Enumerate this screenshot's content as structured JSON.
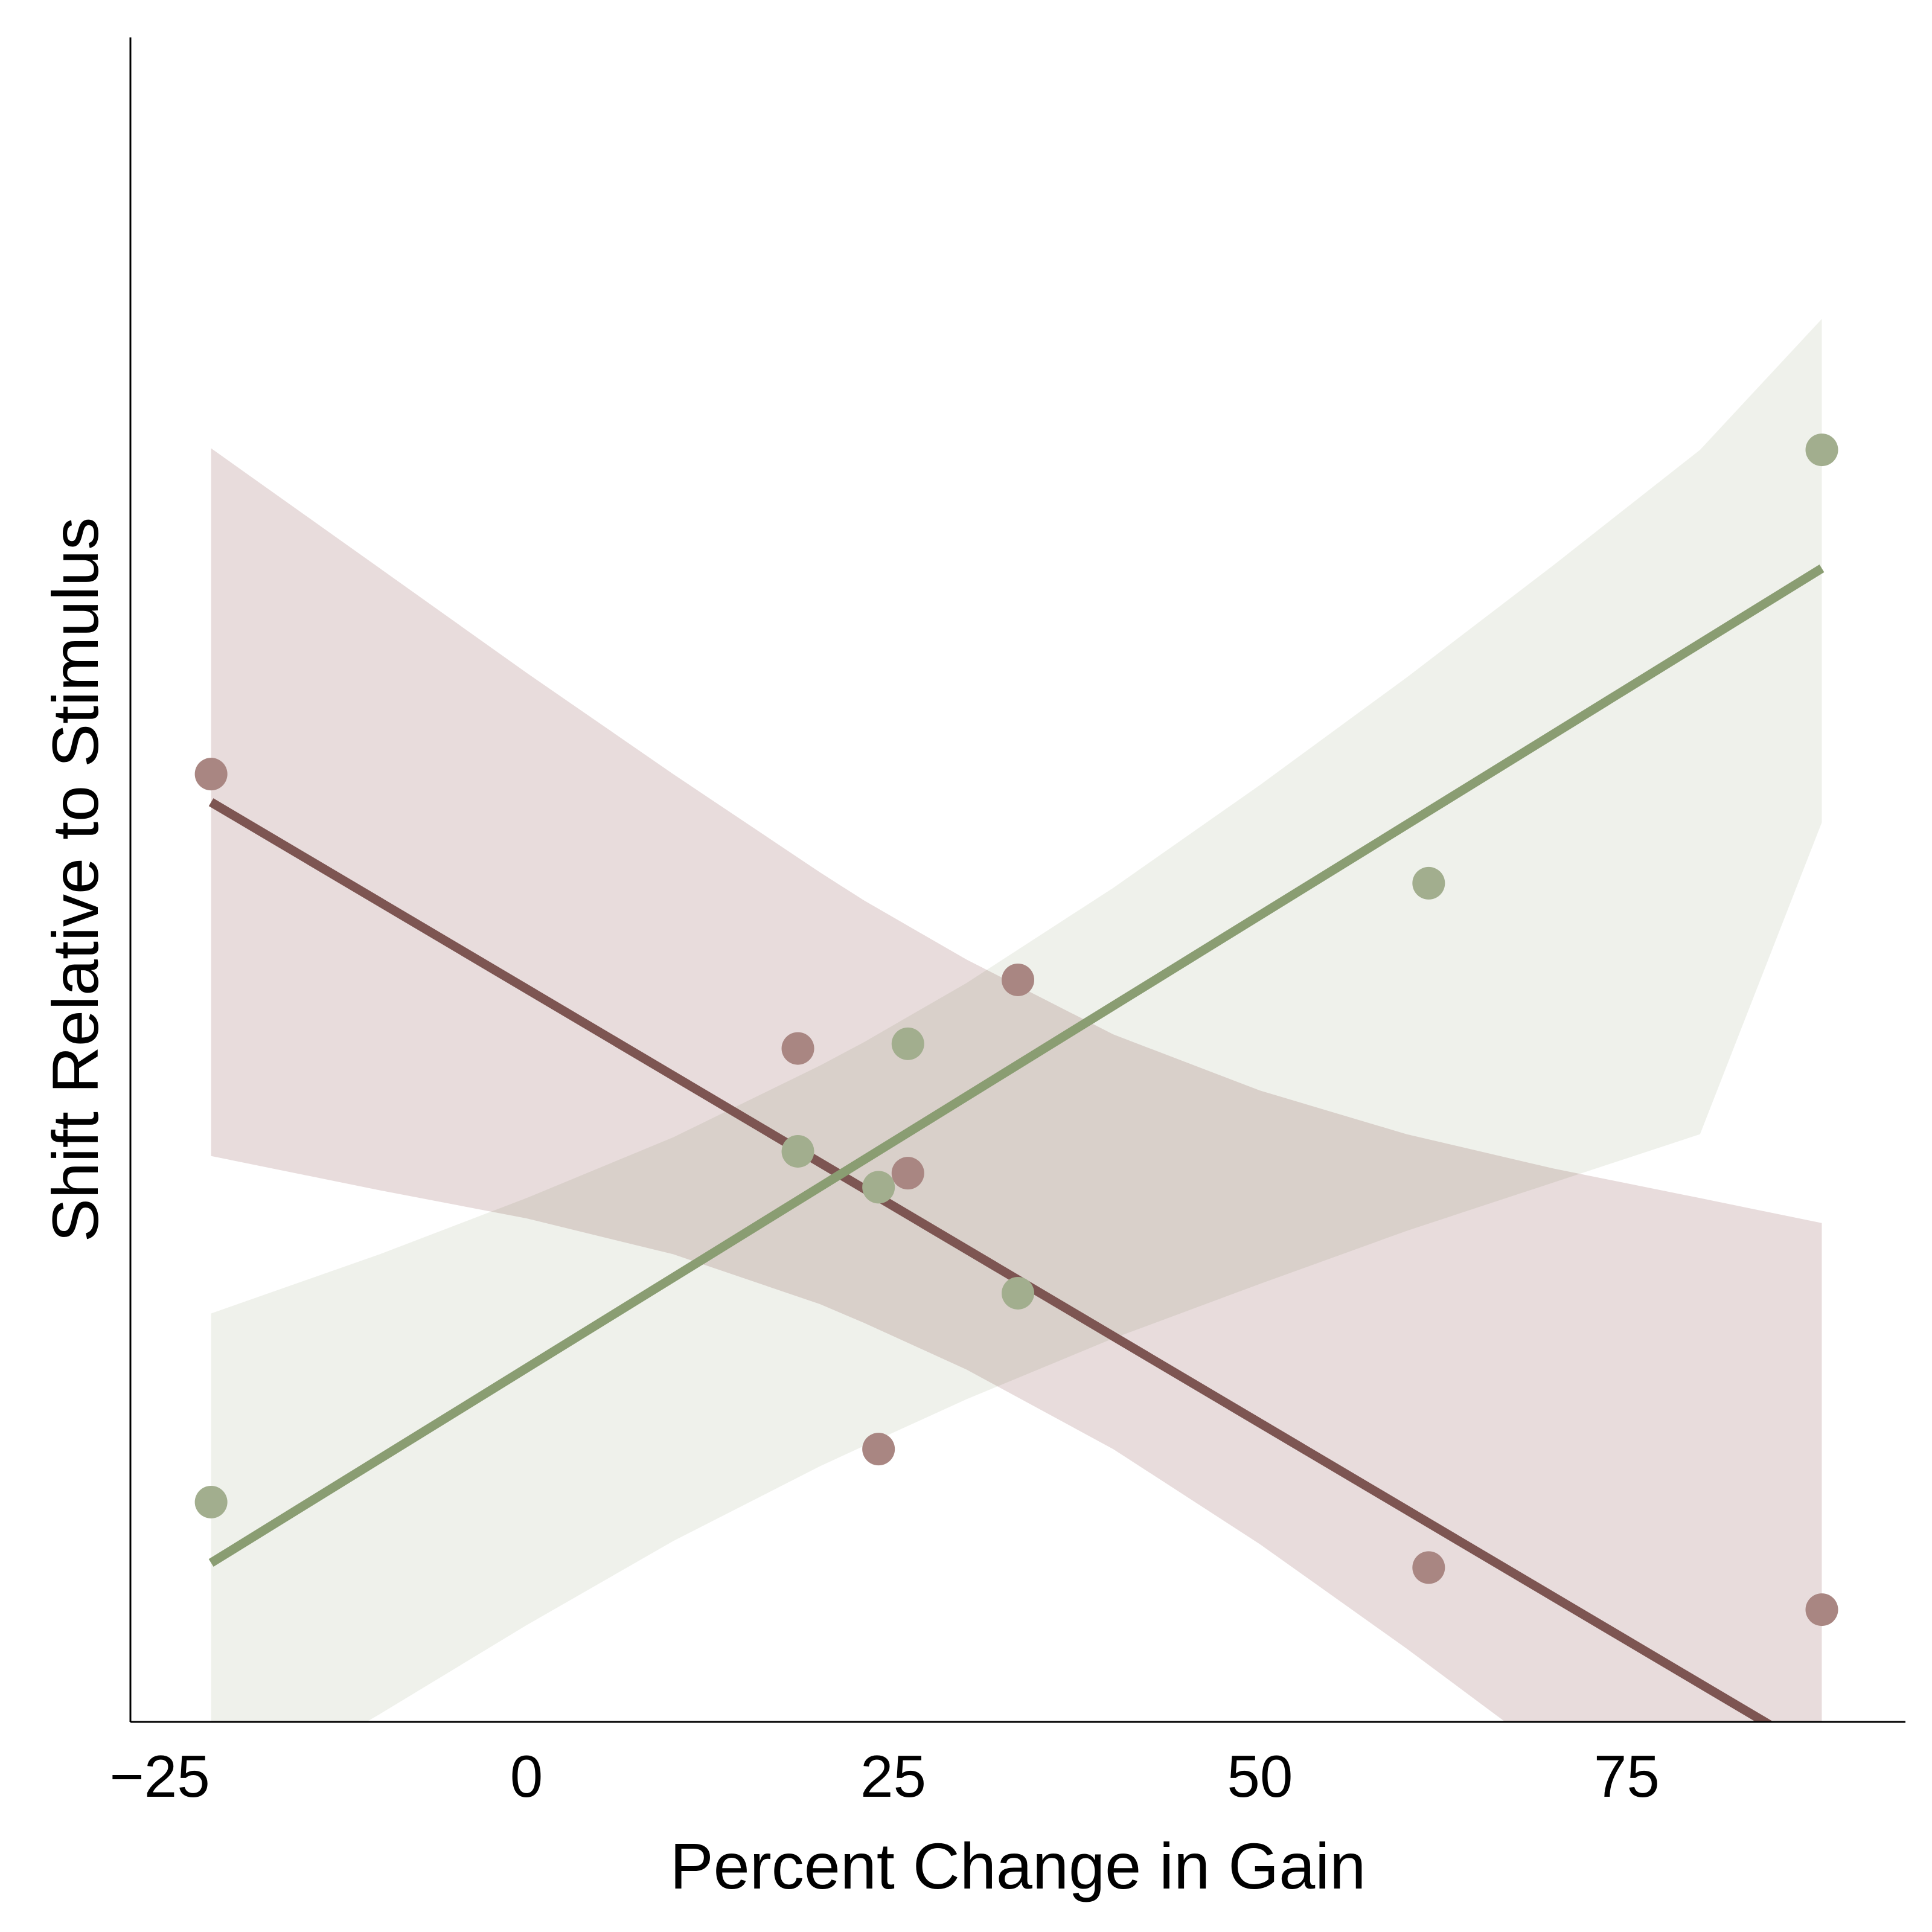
{
  "chart_data": {
    "type": "scatter",
    "title": "",
    "xlabel": "Percent Change in Gain",
    "ylabel": "Shift Relative to Stimulus",
    "xlim": [
      -27,
      94
    ],
    "ylim": [
      0,
      1
    ],
    "x_ticks": [
      -25,
      0,
      25,
      50,
      75
    ],
    "x_tick_labels": [
      "−25",
      "0",
      "25",
      "50",
      "75"
    ],
    "y_ticks": [],
    "grid": false,
    "legend": "none",
    "series": [
      {
        "color": "#7d5552",
        "marker_color": "#a98682",
        "band_color": "#e8dcdc",
        "fit": {
          "x": [
            -21.5,
            88.3
          ],
          "y": [
            0.59,
            -0.0217
          ]
        },
        "band": {
          "x": [
            -21.5,
            -10,
            0,
            10,
            20,
            23,
            30,
            40,
            50,
            60,
            70,
            80,
            88.3
          ],
          "upper": [
            0.817,
            0.74,
            0.673,
            0.608,
            0.545,
            0.527,
            0.489,
            0.441,
            0.405,
            0.377,
            0.355,
            0.336,
            0.32
          ],
          "lower": [
            0.363,
            0.341,
            0.323,
            0.3,
            0.268,
            0.256,
            0.226,
            0.175,
            0.114,
            0.047,
            -0.023,
            -0.096,
            -0.157
          ]
        },
        "points": [
          {
            "x": -21.5,
            "y": 0.608
          },
          {
            "x": 18.5,
            "y": 0.432
          },
          {
            "x": 24.0,
            "y": 0.175
          },
          {
            "x": 26.0,
            "y": 0.352
          },
          {
            "x": 33.5,
            "y": 0.476
          },
          {
            "x": 61.5,
            "y": 0.099
          },
          {
            "x": 88.3,
            "y": 0.072
          }
        ]
      },
      {
        "color": "#8a9d72",
        "marker_color": "#a2ae8e",
        "band_color": "#e9ebe3",
        "fit": {
          "x": [
            -21.5,
            88.3
          ],
          "y": [
            0.102,
            0.74
          ]
        },
        "band": {
          "x": [
            -21.5,
            -10,
            0,
            10,
            20,
            23,
            30,
            40,
            50,
            60,
            70,
            80,
            88.3
          ],
          "upper": [
            0.262,
            0.3,
            0.336,
            0.375,
            0.421,
            0.436,
            0.474,
            0.535,
            0.601,
            0.67,
            0.742,
            0.816,
            0.9
          ],
          "lower": [
            -0.058,
            0.005,
            0.062,
            0.116,
            0.164,
            0.177,
            0.207,
            0.246,
            0.281,
            0.315,
            0.346,
            0.377,
            0.577
          ]
        },
        "points": [
          {
            "x": -21.5,
            "y": 0.141
          },
          {
            "x": 18.5,
            "y": 0.366
          },
          {
            "x": 24.0,
            "y": 0.343
          },
          {
            "x": 26.0,
            "y": 0.435
          },
          {
            "x": 33.5,
            "y": 0.275
          },
          {
            "x": 61.5,
            "y": 0.538
          },
          {
            "x": 88.3,
            "y": 0.816
          }
        ]
      }
    ]
  }
}
